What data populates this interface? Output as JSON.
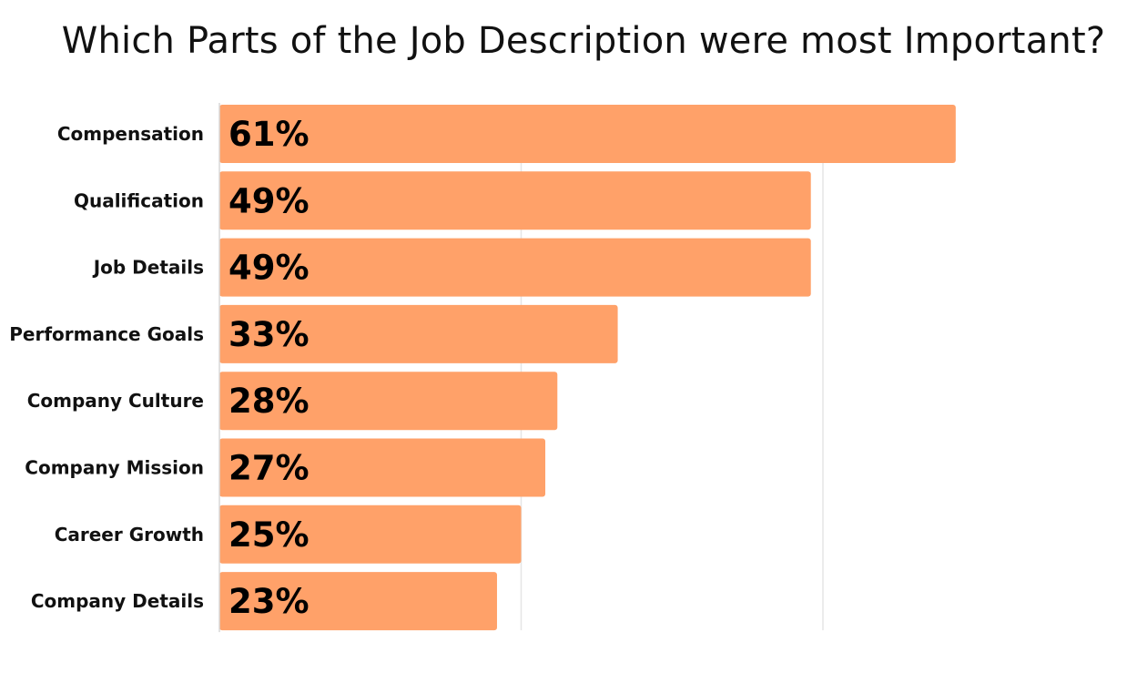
{
  "chart_data": {
    "type": "bar",
    "orientation": "horizontal",
    "title": "Which Parts of the Job Description were most Important?",
    "categories": [
      "Compensation",
      "Qualification",
      "Job Details",
      "Performance Goals",
      "Company Culture",
      "Company Mission",
      "Career Growth",
      "Company Details"
    ],
    "values": [
      61,
      49,
      49,
      33,
      28,
      27,
      25,
      23
    ],
    "value_labels": [
      "61%",
      "49%",
      "49%",
      "33%",
      "28%",
      "27%",
      "25%",
      "23%"
    ],
    "xlabel": "",
    "ylabel": "",
    "xlim": [
      0,
      75
    ],
    "grid": true,
    "legend": "none",
    "bar_color": "#FFA169",
    "grid_color": "#e6e6e6",
    "axis_color": "#d8d8d8"
  }
}
